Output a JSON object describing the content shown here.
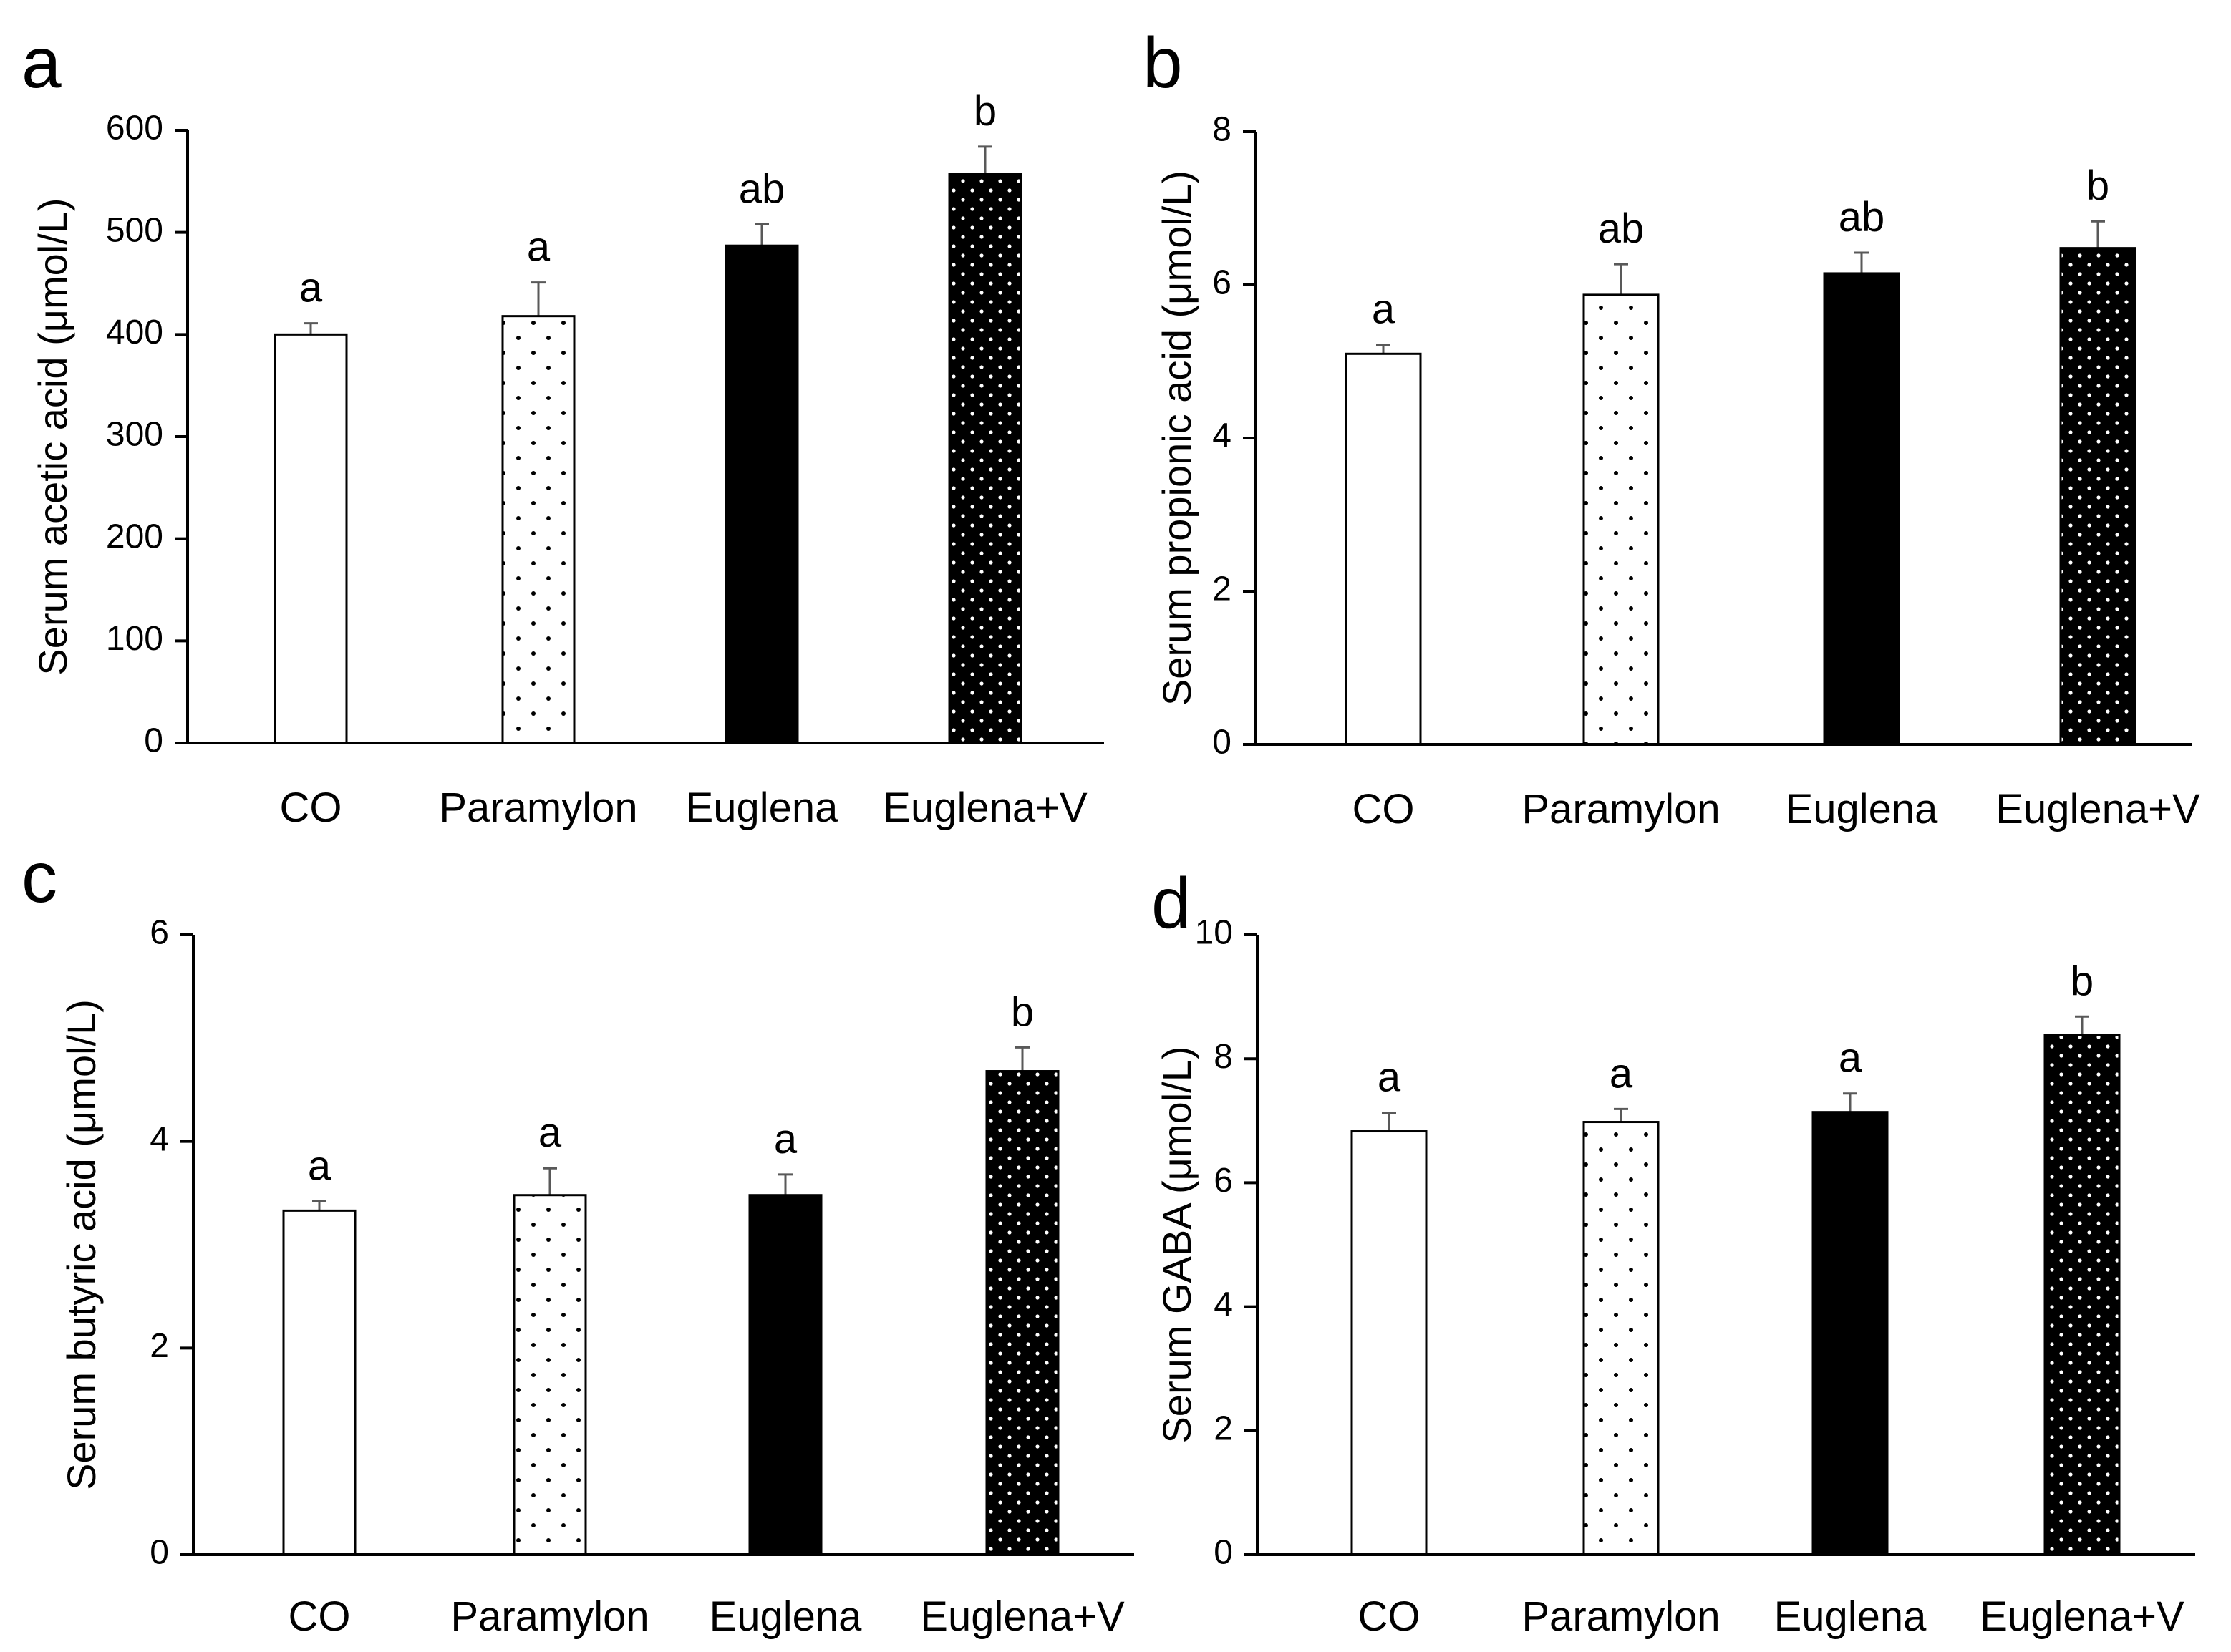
{
  "chart_data": [
    {
      "panel": "a",
      "type": "bar",
      "title": "",
      "xlabel": "",
      "ylabel": "Serum acetic acid (μmol/L)",
      "categories": [
        "CO",
        "Paramylon",
        "Euglena",
        "Euglena+V"
      ],
      "values": [
        400,
        418,
        487,
        557
      ],
      "errors": [
        11,
        33,
        21,
        27
      ],
      "significance": [
        "a",
        "a",
        "ab",
        "b"
      ],
      "ylim": [
        0,
        600
      ],
      "yticks": [
        0,
        100,
        200,
        300,
        400,
        500,
        600
      ],
      "patterns": [
        "white",
        "sparse-dots",
        "black",
        "dense-dots"
      ],
      "grid": false
    },
    {
      "panel": "b",
      "type": "bar",
      "title": "",
      "xlabel": "",
      "ylabel": "Serum propionic acid (μmol/L)",
      "categories": [
        "CO",
        "Paramylon",
        "Euglena",
        "Euglena+V"
      ],
      "values": [
        5.1,
        5.87,
        6.15,
        6.48
      ],
      "errors": [
        0.12,
        0.4,
        0.27,
        0.35
      ],
      "significance": [
        "a",
        "ab",
        "ab",
        "b"
      ],
      "ylim": [
        0,
        8
      ],
      "yticks": [
        0,
        2,
        4,
        6,
        8
      ],
      "patterns": [
        "white",
        "sparse-dots",
        "black",
        "dense-dots"
      ],
      "grid": false
    },
    {
      "panel": "c",
      "type": "bar",
      "title": "",
      "xlabel": "",
      "ylabel": "Serum butyric acid (μmol/L)",
      "categories": [
        "CO",
        "Paramylon",
        "Euglena",
        "Euglena+V"
      ],
      "values": [
        3.33,
        3.48,
        3.48,
        4.68
      ],
      "errors": [
        0.09,
        0.26,
        0.2,
        0.23
      ],
      "significance": [
        "a",
        "a",
        "a",
        "b"
      ],
      "ylim": [
        0,
        6
      ],
      "yticks": [
        0,
        2,
        4,
        6
      ],
      "patterns": [
        "white",
        "sparse-dots",
        "black",
        "dense-dots"
      ],
      "grid": false
    },
    {
      "panel": "d",
      "type": "bar",
      "title": "",
      "xlabel": "",
      "ylabel": "Serum GABA (μmol/L)",
      "categories": [
        "CO",
        "Paramylon",
        "Euglena",
        "Euglena+V"
      ],
      "values": [
        6.83,
        6.98,
        7.14,
        8.38
      ],
      "errors": [
        0.3,
        0.21,
        0.3,
        0.3
      ],
      "significance": [
        "a",
        "a",
        "a",
        "b"
      ],
      "ylim": [
        0,
        10
      ],
      "yticks": [
        0,
        2,
        4,
        6,
        8,
        10
      ],
      "patterns": [
        "white",
        "sparse-dots",
        "black",
        "dense-dots"
      ],
      "grid": false
    }
  ],
  "colors": {
    "axis": "#000000",
    "error_bar": "#595959",
    "bar_black": "#000000",
    "bar_white": "#ffffff"
  }
}
